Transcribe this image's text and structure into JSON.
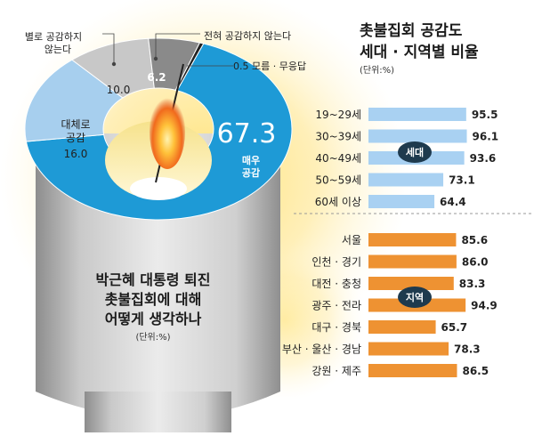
{
  "colors": {
    "very": "#1e9ad6",
    "mostly": "#a7cfee",
    "notmuch": "#c8c8c8",
    "never": "#8a8a8a",
    "dontknow": "#222222",
    "age_bar": "#a9d1f2",
    "region_bar": "#ee9232",
    "age_badge": "#1e3a4e",
    "region_badge": "#1e3a4e"
  },
  "chart_data": [
    {
      "type": "pie",
      "title": "박근혜 대통령 퇴진 촛불집회에 대해 어떻게 생각하나",
      "unit": "(단위:%)",
      "slices": [
        {
          "label": "매우 공감",
          "value": 67.3,
          "color_key": "very"
        },
        {
          "label": "대체로 공감",
          "value": 16.0,
          "color_key": "mostly"
        },
        {
          "label": "별로 공감하지 않는다",
          "value": 10.0,
          "color_key": "notmuch"
        },
        {
          "label": "전혀 공감하지 않는다",
          "value": 6.2,
          "color_key": "never"
        },
        {
          "label": "모름 · 무응답",
          "value": 0.5,
          "color_key": "dontknow"
        }
      ]
    },
    {
      "type": "bar",
      "title": "촛불집회 공감도 세대 · 지역별 비율",
      "unit": "(단위:%)",
      "groups": [
        {
          "label": "세대",
          "color_key": "age_bar",
          "categories": [
            "19~29세",
            "30~39세",
            "40~49세",
            "50~59세",
            "60세 이상"
          ],
          "values": [
            "95.5",
            "96.1",
            "93.6",
            "73.1",
            "64.4"
          ]
        },
        {
          "label": "지역",
          "color_key": "region_bar",
          "categories": [
            "서울",
            "인천 · 경기",
            "대전 · 충청",
            "광주 · 전라",
            "대구 · 경북",
            "부산 · 울산 · 경남",
            "강원 · 제주"
          ],
          "values": [
            "85.6",
            "86.0",
            "83.3",
            "94.9",
            "65.7",
            "78.3",
            "86.5"
          ]
        }
      ]
    }
  ],
  "donut_labels": {
    "very_value": "67.3",
    "very_label1": "매우",
    "very_label2": "공감",
    "mostly_label1": "대체로",
    "mostly_label2": "공감",
    "mostly_value": "16.0",
    "notmuch_value": "10.0",
    "never_value": "6.2",
    "notmuch_callout1": "별로 공감하지",
    "notmuch_callout2": "않는다",
    "never_callout": "전혀 공감하지 않는다",
    "dontknow_callout": "0.5 모름 · 무응답"
  },
  "left_title": [
    "박근혜 대통령 퇴진",
    "촛불집회에 대해",
    "어떻게 생각하나"
  ],
  "left_unit": "(단위:%)",
  "right_title": [
    "촛불집회 공감도",
    "세대 · 지역별 비율"
  ],
  "right_unit": "(단위:%)"
}
